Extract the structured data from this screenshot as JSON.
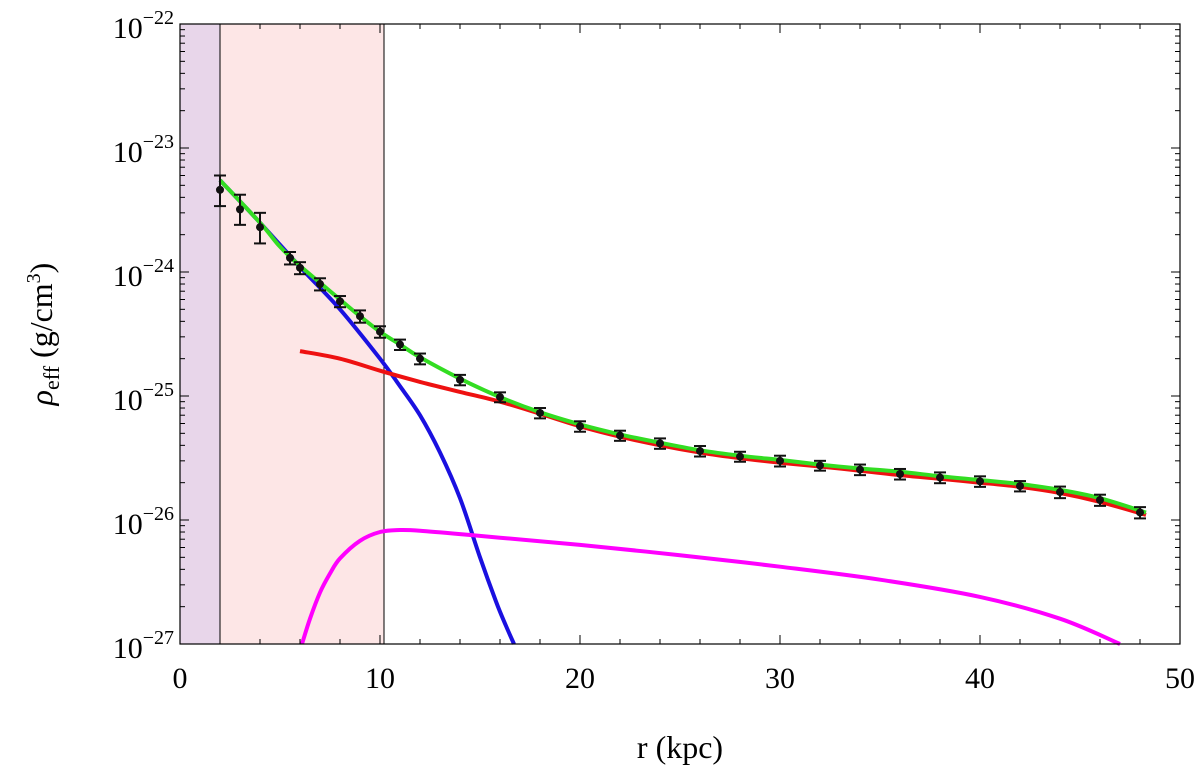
{
  "chart_data": {
    "type": "line",
    "title": "",
    "xlabel": "r (kpc)",
    "ylabel": {
      "symbol": "ρ",
      "subscript": "eff",
      "unit_main": " (g/cm",
      "unit_sup": "3",
      "unit_close": ")"
    },
    "xlim": [
      0,
      50
    ],
    "ylim": [
      1e-27,
      1e-22
    ],
    "yscale": "log",
    "grid": false,
    "legend": "none",
    "x_ticks": [
      0,
      10,
      20,
      30,
      40,
      50
    ],
    "x_tick_labels": [
      "0",
      "10",
      "20",
      "30",
      "40",
      "50"
    ],
    "y_ticks": [
      1e-27,
      1e-26,
      1e-25,
      1e-24,
      1e-23,
      1e-22
    ],
    "y_tick_labels": [
      {
        "base": "10",
        "exp": "−27"
      },
      {
        "base": "10",
        "exp": "−26"
      },
      {
        "base": "10",
        "exp": "−25"
      },
      {
        "base": "10",
        "exp": "−24"
      },
      {
        "base": "10",
        "exp": "−23"
      },
      {
        "base": "10",
        "exp": "−22"
      }
    ],
    "shaded_regions": [
      {
        "x0": 0,
        "x1": 2.0,
        "color": "#e8d6ea"
      },
      {
        "x0": 2.0,
        "x1": 10.2,
        "color": "#fde6e6"
      }
    ],
    "vlines": [
      2.0,
      10.2
    ],
    "series": [
      {
        "color": "#1a10e0",
        "points": [
          [
            2.0,
            5.5e-24
          ],
          [
            4,
            2.5e-24
          ],
          [
            6,
            1.1e-24
          ],
          [
            8,
            5e-25
          ],
          [
            10,
            2e-25
          ],
          [
            11,
            1.2e-25
          ],
          [
            12,
            7e-26
          ],
          [
            13,
            3.5e-26
          ],
          [
            14,
            1.5e-26
          ],
          [
            15,
            5e-27
          ],
          [
            15.8,
            2.2e-27
          ],
          [
            16.3,
            1.4e-27
          ],
          [
            16.7,
            1e-27
          ]
        ]
      },
      {
        "color": "#ff00ff",
        "points": [
          [
            6.1,
            1e-27
          ],
          [
            6.5,
            1.6e-27
          ],
          [
            7,
            2.6e-27
          ],
          [
            7.5,
            3.7e-27
          ],
          [
            8,
            4.9e-27
          ],
          [
            9,
            6.8e-27
          ],
          [
            10,
            8e-27
          ],
          [
            11,
            8.3e-27
          ],
          [
            12,
            8.2e-27
          ],
          [
            14,
            7.7e-27
          ],
          [
            16,
            7.2e-27
          ],
          [
            20,
            6.3e-27
          ],
          [
            25,
            5.2e-27
          ],
          [
            30,
            4.2e-27
          ],
          [
            35,
            3.3e-27
          ],
          [
            40,
            2.4e-27
          ],
          [
            44,
            1.6e-27
          ],
          [
            47,
            1e-27
          ]
        ]
      },
      {
        "color": "#ee1111",
        "points": [
          [
            6,
            2.3e-25
          ],
          [
            8,
            2e-25
          ],
          [
            10,
            1.6e-25
          ],
          [
            12,
            1.3e-25
          ],
          [
            14,
            1.08e-25
          ],
          [
            16,
            9e-26
          ],
          [
            18,
            7.2e-26
          ],
          [
            20,
            5.7e-26
          ],
          [
            22,
            4.7e-26
          ],
          [
            24,
            4e-26
          ],
          [
            26,
            3.5e-26
          ],
          [
            28,
            3.15e-26
          ],
          [
            30,
            2.9e-26
          ],
          [
            32,
            2.7e-26
          ],
          [
            34,
            2.5e-26
          ],
          [
            36,
            2.3e-26
          ],
          [
            38,
            2.15e-26
          ],
          [
            40,
            2e-26
          ],
          [
            42,
            1.85e-26
          ],
          [
            44,
            1.65e-26
          ],
          [
            46,
            1.4e-26
          ],
          [
            48.3,
            1.1e-26
          ]
        ]
      },
      {
        "color": "#33dd22",
        "points": [
          [
            2.0,
            5.5e-24
          ],
          [
            4,
            2.5e-24
          ],
          [
            5,
            1.6e-24
          ],
          [
            6,
            1.12e-24
          ],
          [
            7,
            8.2e-25
          ],
          [
            8,
            6e-25
          ],
          [
            9,
            4.4e-25
          ],
          [
            10,
            3.3e-25
          ],
          [
            11,
            2.6e-25
          ],
          [
            12,
            2.05e-25
          ],
          [
            14,
            1.38e-25
          ],
          [
            16,
            9.8e-26
          ],
          [
            18,
            7.4e-26
          ],
          [
            20,
            5.9e-26
          ],
          [
            22,
            4.9e-26
          ],
          [
            24,
            4.2e-26
          ],
          [
            26,
            3.65e-26
          ],
          [
            28,
            3.3e-26
          ],
          [
            30,
            3.05e-26
          ],
          [
            32,
            2.8e-26
          ],
          [
            34,
            2.6e-26
          ],
          [
            36,
            2.45e-26
          ],
          [
            38,
            2.25e-26
          ],
          [
            40,
            2.1e-26
          ],
          [
            42,
            1.95e-26
          ],
          [
            44,
            1.75e-26
          ],
          [
            46,
            1.5e-26
          ],
          [
            48.3,
            1.15e-26
          ]
        ]
      }
    ],
    "data_points": {
      "color": "#111111",
      "points": [
        {
          "x": 2,
          "y": 4.6e-24,
          "lo": 3.4e-24,
          "hi": 6e-24
        },
        {
          "x": 3,
          "y": 3.2e-24,
          "lo": 2.4e-24,
          "hi": 4.2e-24
        },
        {
          "x": 4,
          "y": 2.3e-24,
          "lo": 1.7e-24,
          "hi": 3e-24
        },
        {
          "x": 5.5,
          "y": 1.3e-24,
          "lo": 1.15e-24,
          "hi": 1.45e-24
        },
        {
          "x": 6,
          "y": 1.08e-24,
          "lo": 9.6e-25,
          "hi": 1.2e-24
        },
        {
          "x": 7,
          "y": 8e-25,
          "lo": 7.1e-25,
          "hi": 8.9e-25
        },
        {
          "x": 8,
          "y": 5.8e-25,
          "lo": 5.2e-25,
          "hi": 6.4e-25
        },
        {
          "x": 9,
          "y": 4.4e-25,
          "lo": 3.9e-25,
          "hi": 4.9e-25
        },
        {
          "x": 10,
          "y": 3.3e-25,
          "lo": 2.95e-25,
          "hi": 3.65e-25
        },
        {
          "x": 11,
          "y": 2.6e-25,
          "lo": 2.35e-25,
          "hi": 2.85e-25
        },
        {
          "x": 12,
          "y": 2e-25,
          "lo": 1.8e-25,
          "hi": 2.2e-25
        },
        {
          "x": 14,
          "y": 1.35e-25,
          "lo": 1.22e-25,
          "hi": 1.48e-25
        },
        {
          "x": 16,
          "y": 9.8e-26,
          "lo": 8.9e-26,
          "hi": 1.07e-25
        },
        {
          "x": 18,
          "y": 7.3e-26,
          "lo": 6.6e-26,
          "hi": 8e-26
        },
        {
          "x": 20,
          "y": 5.7e-26,
          "lo": 5.15e-26,
          "hi": 6.25e-26
        },
        {
          "x": 22,
          "y": 4.8e-26,
          "lo": 4.35e-26,
          "hi": 5.25e-26
        },
        {
          "x": 24,
          "y": 4.15e-26,
          "lo": 3.75e-26,
          "hi": 4.55e-26
        },
        {
          "x": 26,
          "y": 3.6e-26,
          "lo": 3.25e-26,
          "hi": 3.95e-26
        },
        {
          "x": 28,
          "y": 3.25e-26,
          "lo": 2.95e-26,
          "hi": 3.55e-26
        },
        {
          "x": 30,
          "y": 3e-26,
          "lo": 2.7e-26,
          "hi": 3.3e-26
        },
        {
          "x": 32,
          "y": 2.75e-26,
          "lo": 2.5e-26,
          "hi": 3e-26
        },
        {
          "x": 34,
          "y": 2.55e-26,
          "lo": 2.3e-26,
          "hi": 2.8e-26
        },
        {
          "x": 36,
          "y": 2.35e-26,
          "lo": 2.12e-26,
          "hi": 2.58e-26
        },
        {
          "x": 38,
          "y": 2.2e-26,
          "lo": 1.98e-26,
          "hi": 2.42e-26
        },
        {
          "x": 40,
          "y": 2.05e-26,
          "lo": 1.85e-26,
          "hi": 2.25e-26
        },
        {
          "x": 42,
          "y": 1.88e-26,
          "lo": 1.7e-26,
          "hi": 2.06e-26
        },
        {
          "x": 44,
          "y": 1.68e-26,
          "lo": 1.5e-26,
          "hi": 1.86e-26
        },
        {
          "x": 46,
          "y": 1.45e-26,
          "lo": 1.3e-26,
          "hi": 1.6e-26
        },
        {
          "x": 48,
          "y": 1.15e-26,
          "lo": 1.03e-26,
          "hi": 1.27e-26
        }
      ]
    }
  }
}
